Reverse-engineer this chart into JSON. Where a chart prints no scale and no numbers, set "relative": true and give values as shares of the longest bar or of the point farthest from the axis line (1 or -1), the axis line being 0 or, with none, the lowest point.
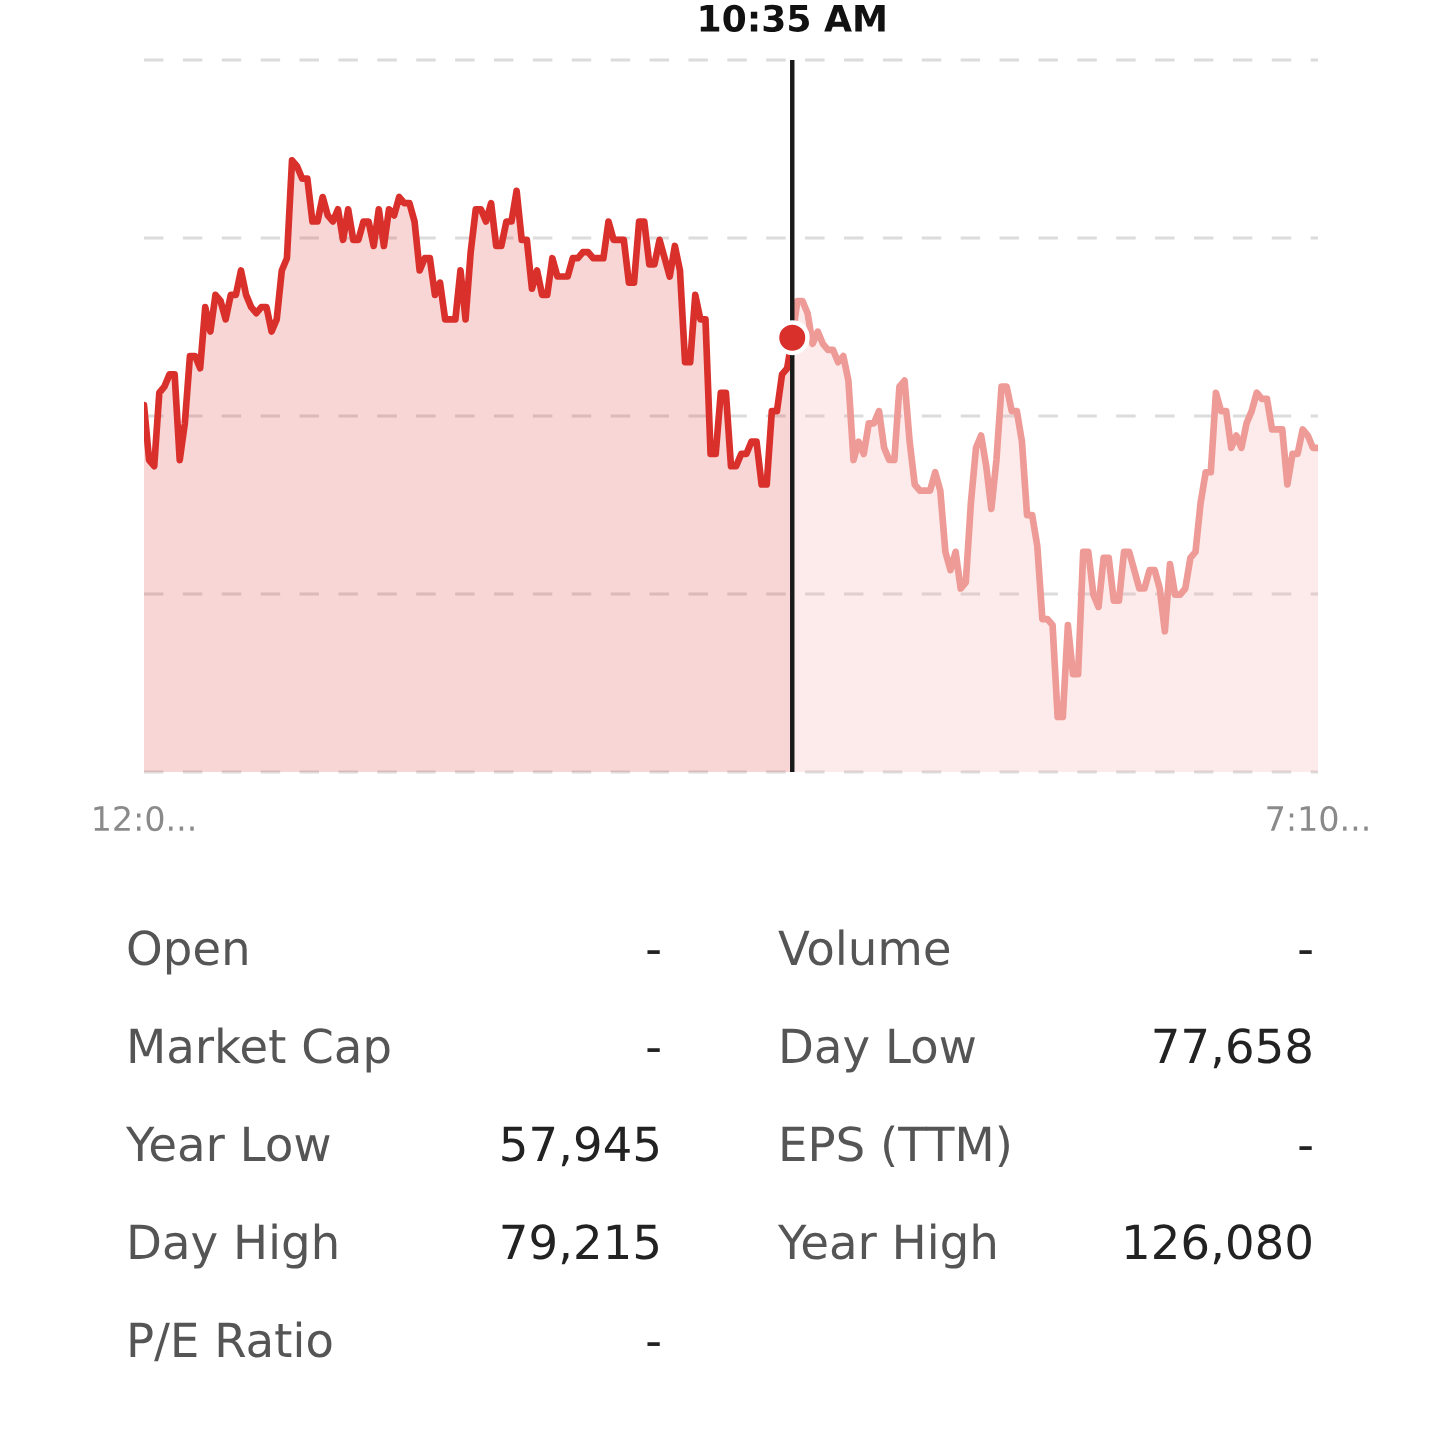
{
  "chart_data": [
    {
      "type": "area",
      "relative": true,
      "grid": "y",
      "tick_labels": "x",
      "categories": [
        "12:0...",
        null,
        null,
        null,
        null,
        null,
        null,
        null,
        null,
        null,
        null,
        null,
        null,
        null,
        null,
        null,
        null,
        null,
        null,
        null,
        null,
        null,
        null,
        null,
        null,
        null,
        null,
        null,
        null,
        null,
        null,
        null,
        null,
        null,
        null,
        null,
        null,
        null,
        null,
        null,
        null,
        null,
        null,
        null,
        null,
        null,
        null,
        null,
        null,
        null,
        null,
        null,
        null,
        null,
        null,
        null,
        null,
        null,
        null,
        null,
        null,
        null,
        null,
        null,
        null,
        null,
        null,
        null,
        null,
        null,
        null,
        null,
        null,
        null,
        null,
        null,
        null,
        null,
        null,
        null,
        null,
        null,
        null,
        null,
        null,
        null,
        null,
        null,
        null,
        null,
        null,
        null,
        null,
        null,
        null,
        null,
        null,
        null,
        null,
        null,
        null,
        null,
        null,
        null,
        null,
        null,
        null,
        null,
        null,
        null,
        null,
        null,
        null,
        null,
        null,
        null,
        null,
        null,
        null,
        null,
        null,
        null,
        null,
        null,
        null,
        null,
        null,
        null,
        null,
        null,
        null,
        null,
        null,
        null,
        null,
        null,
        null,
        null,
        null,
        null,
        null,
        null,
        null,
        null,
        null,
        null,
        null,
        null,
        null,
        null,
        null,
        null,
        null,
        null,
        null,
        null,
        null,
        null,
        null,
        null,
        null,
        null,
        null,
        null,
        null,
        null,
        null,
        null,
        null,
        null,
        null,
        null,
        null,
        null,
        null,
        null,
        null,
        null,
        null,
        null,
        null,
        null,
        null,
        null,
        null,
        null,
        null,
        null,
        null,
        null,
        null,
        null,
        null,
        null,
        null,
        null,
        null,
        null,
        null,
        null,
        null,
        null,
        null,
        null,
        null,
        null,
        null,
        null,
        null,
        null,
        null,
        null,
        null,
        null,
        null,
        null,
        null,
        null,
        null,
        null,
        null,
        null,
        null,
        null,
        null,
        null,
        null,
        null,
        null,
        null,
        "7:10..."
      ],
      "annotations": [
        "10:35 AM"
      ],
      "series": [
        {
          "type": "area",
          "color": "#d9302c",
          "values": [
            0.6,
            0.51,
            0.5,
            0.62,
            0.63,
            0.65,
            0.65,
            0.51,
            0.57,
            0.68,
            0.68,
            0.66,
            0.76,
            0.72,
            0.78,
            0.77,
            0.74,
            0.78,
            0.78,
            0.82,
            0.78,
            0.76,
            0.75,
            0.76,
            0.76,
            0.72,
            0.74,
            0.82,
            0.84,
            1.0,
            0.99,
            0.97,
            0.97,
            0.9,
            0.9,
            0.94,
            0.91,
            0.9,
            0.92,
            0.87,
            0.92,
            0.87,
            0.87,
            0.9,
            0.9,
            0.86,
            0.92,
            0.86,
            0.92,
            0.91,
            0.94,
            0.93,
            0.93,
            0.9,
            0.82,
            0.84,
            0.84,
            0.78,
            0.8,
            0.74,
            0.74,
            0.74,
            0.82,
            0.74,
            0.85,
            0.92,
            0.92,
            0.9,
            0.93,
            0.86,
            0.86,
            0.9,
            0.9,
            0.95,
            0.87,
            0.87,
            0.79,
            0.82,
            0.78,
            0.78,
            0.84,
            0.81,
            0.81,
            0.81,
            0.84,
            0.84,
            0.85,
            0.85,
            0.84,
            0.84,
            0.84,
            0.9,
            0.87,
            0.87,
            0.87,
            0.8,
            0.8,
            0.9,
            0.9,
            0.83,
            0.83,
            0.87,
            0.84,
            0.81,
            0.86,
            0.82,
            0.67,
            0.67,
            0.78,
            0.74,
            0.74,
            0.52,
            0.52,
            0.62,
            0.62,
            0.5,
            0.5,
            0.52,
            0.52,
            0.54,
            0.54,
            0.47,
            0.47,
            0.59,
            0.59,
            0.65,
            0.66,
            0.71,
            null,
            null,
            null,
            null,
            null,
            null,
            null,
            null,
            null,
            null,
            null,
            null,
            null,
            null,
            null,
            null,
            null,
            null,
            null,
            null,
            null,
            null,
            null,
            null,
            null,
            null,
            null,
            null,
            null,
            null,
            null,
            null,
            null,
            null,
            null,
            null,
            null,
            null,
            null,
            null,
            null,
            null,
            null,
            null,
            null,
            null,
            null,
            null,
            null,
            null,
            null,
            null,
            null,
            null,
            null,
            null,
            null,
            null,
            null,
            null,
            null,
            null,
            null,
            null,
            null,
            null,
            null,
            null,
            null,
            null,
            null,
            null,
            null,
            null,
            null,
            null,
            null,
            null,
            null,
            null,
            null,
            null,
            null,
            null,
            null,
            null,
            null,
            null,
            null,
            null,
            null,
            null,
            null,
            null,
            null,
            null,
            null,
            null,
            null,
            null,
            null,
            null,
            null
          ]
        },
        {
          "type": "area",
          "color": "#ee9a96",
          "values": [
            null,
            null,
            null,
            null,
            null,
            null,
            null,
            null,
            null,
            null,
            null,
            null,
            null,
            null,
            null,
            null,
            null,
            null,
            null,
            null,
            null,
            null,
            null,
            null,
            null,
            null,
            null,
            null,
            null,
            null,
            null,
            null,
            null,
            null,
            null,
            null,
            null,
            null,
            null,
            null,
            null,
            null,
            null,
            null,
            null,
            null,
            null,
            null,
            null,
            null,
            null,
            null,
            null,
            null,
            null,
            null,
            null,
            null,
            null,
            null,
            null,
            null,
            null,
            null,
            null,
            null,
            null,
            null,
            null,
            null,
            null,
            null,
            null,
            null,
            null,
            null,
            null,
            null,
            null,
            null,
            null,
            null,
            null,
            null,
            null,
            null,
            null,
            null,
            null,
            null,
            null,
            null,
            null,
            null,
            null,
            null,
            null,
            null,
            null,
            null,
            null,
            null,
            null,
            null,
            null,
            null,
            null,
            null,
            null,
            null,
            null,
            null,
            null,
            null,
            null,
            null,
            null,
            null,
            null,
            null,
            null,
            null,
            null,
            null,
            null,
            null,
            null,
            0.71,
            0.77,
            0.77,
            0.75,
            0.7,
            0.72,
            0.7,
            0.69,
            0.69,
            0.67,
            0.68,
            0.64,
            0.51,
            0.54,
            0.52,
            0.57,
            0.57,
            0.59,
            0.53,
            0.51,
            0.51,
            0.63,
            0.64,
            0.54,
            0.47,
            0.46,
            0.46,
            0.46,
            0.49,
            0.46,
            0.36,
            0.33,
            0.36,
            0.3,
            0.31,
            0.44,
            0.53,
            0.55,
            0.5,
            0.43,
            0.51,
            0.63,
            0.63,
            0.59,
            0.59,
            0.54,
            0.42,
            0.42,
            0.37,
            0.25,
            0.25,
            0.24,
            0.09,
            0.09,
            0.24,
            0.16,
            0.16,
            0.36,
            0.36,
            0.29,
            0.27,
            0.35,
            0.35,
            0.28,
            0.28,
            0.36,
            0.36,
            0.33,
            0.3,
            0.3,
            0.33,
            0.33,
            0.3,
            0.23,
            0.34,
            0.29,
            0.29,
            0.3,
            0.35,
            0.36,
            0.44,
            0.49,
            0.49,
            0.62,
            0.59,
            0.59,
            0.53,
            0.55,
            0.53,
            0.57,
            0.59,
            0.62,
            0.61,
            0.61,
            0.56,
            0.56,
            0.56,
            0.47,
            0.52,
            0.52,
            0.56,
            0.55,
            0.53,
            0.53
          ]
        },
        {
          "type": "scatter",
          "color": "#d9302c",
          "marker": "circle",
          "values": [
            null,
            null,
            null,
            null,
            null,
            null,
            null,
            null,
            null,
            null,
            null,
            null,
            null,
            null,
            null,
            null,
            null,
            null,
            null,
            null,
            null,
            null,
            null,
            null,
            null,
            null,
            null,
            null,
            null,
            null,
            null,
            null,
            null,
            null,
            null,
            null,
            null,
            null,
            null,
            null,
            null,
            null,
            null,
            null,
            null,
            null,
            null,
            null,
            null,
            null,
            null,
            null,
            null,
            null,
            null,
            null,
            null,
            null,
            null,
            null,
            null,
            null,
            null,
            null,
            null,
            null,
            null,
            null,
            null,
            null,
            null,
            null,
            null,
            null,
            null,
            null,
            null,
            null,
            null,
            null,
            null,
            null,
            null,
            null,
            null,
            null,
            null,
            null,
            null,
            null,
            null,
            null,
            null,
            null,
            null,
            null,
            null,
            null,
            null,
            null,
            null,
            null,
            null,
            null,
            null,
            null,
            null,
            null,
            null,
            null,
            null,
            null,
            null,
            null,
            null,
            null,
            null,
            null,
            null,
            null,
            null,
            null,
            null,
            null,
            null,
            null,
            null,
            0.71,
            null,
            null,
            null,
            null,
            null,
            null,
            null,
            null,
            null,
            null,
            null,
            null,
            null,
            null,
            null,
            null,
            null,
            null,
            null,
            null,
            null,
            null,
            null,
            null,
            null,
            null,
            null,
            null,
            null,
            null,
            null,
            null,
            null,
            null,
            null,
            null,
            null,
            null,
            null,
            null,
            null,
            null,
            null,
            null,
            null,
            null,
            null,
            null,
            null,
            null,
            null,
            null,
            null,
            null,
            null,
            null,
            null,
            null,
            null,
            null,
            null,
            null,
            null,
            null,
            null,
            null,
            null,
            null,
            null,
            null,
            null,
            null,
            null,
            null,
            null,
            null,
            null,
            null,
            null,
            null,
            null,
            null,
            null,
            null,
            null,
            null,
            null,
            null,
            null,
            null,
            null,
            null,
            null,
            null,
            null,
            null,
            null,
            null,
            null,
            null,
            null,
            null,
            null
          ]
        }
      ]
    },
    {
      "type": "other",
      "annotations": [
        "Open",
        "-",
        "Volume",
        "-",
        "Market Cap",
        "-",
        "Day Low",
        "77,658",
        "Year Low",
        "57,945",
        "EPS (TTM)",
        "-",
        "Day High",
        "79,215",
        "Year High",
        "126,080",
        "P/E Ratio",
        "-"
      ]
    }
  ]
}
